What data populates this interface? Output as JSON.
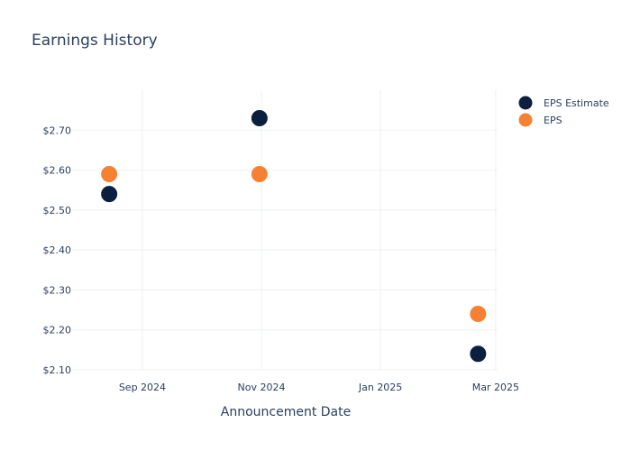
{
  "chart_data": {
    "type": "scatter",
    "title": "Earnings History",
    "xlabel": "Announcement Date",
    "ylabel": "",
    "x_ticks": [
      {
        "date": "2024-09-01",
        "label": "Sep 2024"
      },
      {
        "date": "2024-11-01",
        "label": "Nov 2024"
      },
      {
        "date": "2025-01-01",
        "label": "Jan 2025"
      },
      {
        "date": "2025-03-01",
        "label": "Mar 2025"
      }
    ],
    "y_ticks": [
      {
        "value": 2.1,
        "label": "$2.10"
      },
      {
        "value": 2.2,
        "label": "$2.20"
      },
      {
        "value": 2.3,
        "label": "$2.30"
      },
      {
        "value": 2.4,
        "label": "$2.40"
      },
      {
        "value": 2.5,
        "label": "$2.50"
      },
      {
        "value": 2.6,
        "label": "$2.60"
      },
      {
        "value": 2.7,
        "label": "$2.70"
      }
    ],
    "xlim": [
      "2024-07-27",
      "2025-03-02"
    ],
    "ylim": [
      2.1,
      2.8
    ],
    "grid": true,
    "legend_position": "top-right",
    "series": [
      {
        "name": "EPS Estimate",
        "color": "#0b1f3f",
        "points": [
          {
            "x": "2024-08-15",
            "y": 2.54
          },
          {
            "x": "2024-10-31",
            "y": 2.73
          },
          {
            "x": "2025-02-20",
            "y": 2.14
          }
        ]
      },
      {
        "name": "EPS",
        "color": "#f58233",
        "points": [
          {
            "x": "2024-08-15",
            "y": 2.59
          },
          {
            "x": "2024-10-31",
            "y": 2.59
          },
          {
            "x": "2025-02-20",
            "y": 2.24
          }
        ]
      }
    ]
  }
}
